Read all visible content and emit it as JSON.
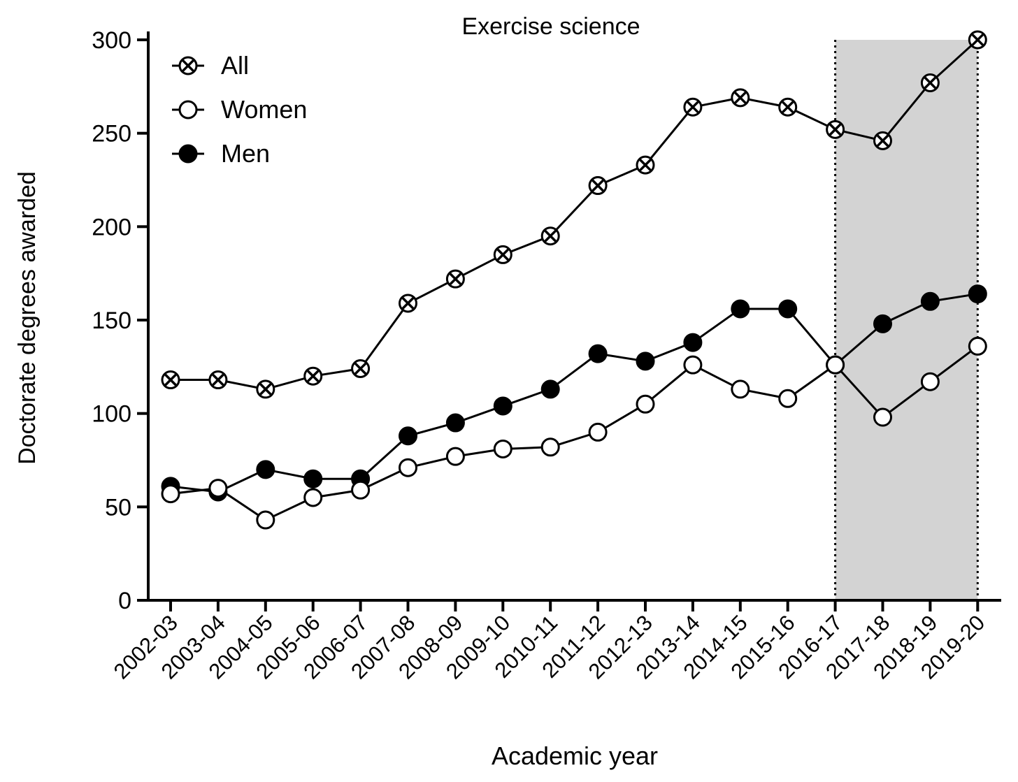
{
  "chart_data": {
    "type": "line",
    "title": "Exercise science",
    "xlabel": "Academic year",
    "ylabel": "Doctorate degrees awarded",
    "ylim": [
      0,
      300
    ],
    "yticks": [
      0,
      50,
      100,
      150,
      200,
      250,
      300
    ],
    "grid": false,
    "legend_position": "top-left",
    "categories": [
      "2002-03",
      "2003-04",
      "2004-05",
      "2005-06",
      "2006-07",
      "2007-08",
      "2008-09",
      "2009-10",
      "2010-11",
      "2011-12",
      "2012-13",
      "2013-14",
      "2014-15",
      "2015-16",
      "2016-17",
      "2017-18",
      "2018-19",
      "2019-20"
    ],
    "shaded_region": {
      "from": "2016-17",
      "to": "2019-20",
      "color": "#d3d3d3"
    },
    "series": [
      {
        "name": "All",
        "marker": "circle-x",
        "values": [
          118,
          118,
          113,
          120,
          124,
          159,
          172,
          185,
          195,
          222,
          233,
          264,
          269,
          264,
          252,
          246,
          277,
          300
        ]
      },
      {
        "name": "Women",
        "marker": "open-circle",
        "values": [
          57,
          60,
          43,
          55,
          59,
          71,
          77,
          81,
          82,
          90,
          105,
          126,
          113,
          108,
          126,
          98,
          117,
          136
        ]
      },
      {
        "name": "Men",
        "marker": "filled-circle",
        "values": [
          61,
          58,
          70,
          65,
          65,
          88,
          95,
          104,
          113,
          132,
          128,
          138,
          156,
          156,
          126,
          148,
          160,
          164
        ]
      }
    ]
  }
}
